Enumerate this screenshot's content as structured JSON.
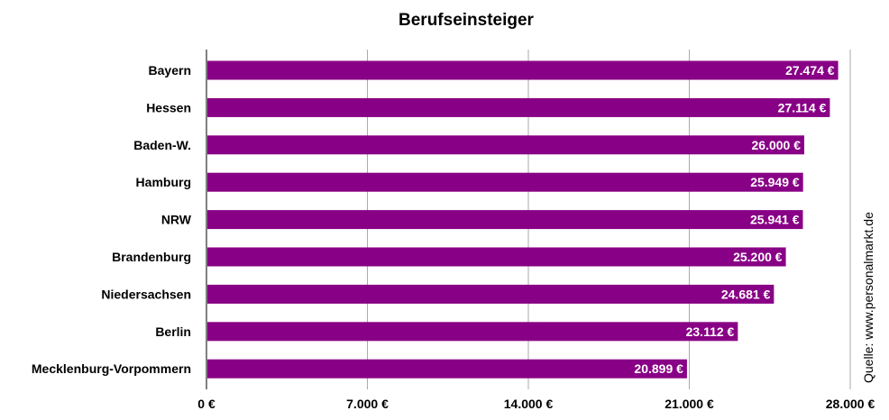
{
  "chart_data": {
    "type": "bar",
    "orientation": "horizontal",
    "title": "Berufseinsteiger",
    "categories": [
      "Bayern",
      "Hessen",
      "Baden-W.",
      "Hamburg",
      "NRW",
      "Brandenburg",
      "Niedersachsen",
      "Berlin",
      "Mecklenburg-Vorpommern"
    ],
    "values": [
      27474,
      27114,
      26000,
      25949,
      25941,
      25200,
      24681,
      23112,
      20899
    ],
    "data_labels": [
      "27.474 €",
      "27.114 €",
      "26.000 €",
      "25.949 €",
      "25.941 €",
      "25.200 €",
      "24.681 €",
      "23.112 €",
      "20.899 €"
    ],
    "xlim": [
      0,
      28000
    ],
    "xticks": [
      0,
      7000,
      14000,
      21000,
      28000
    ],
    "xtick_labels": [
      "0 €",
      "7.000 €",
      "14.000 €",
      "21.000 €",
      "28.000 €"
    ],
    "grid": true,
    "bar_color": "#880085",
    "source": "Quelle: www.personalmarkt.de"
  }
}
